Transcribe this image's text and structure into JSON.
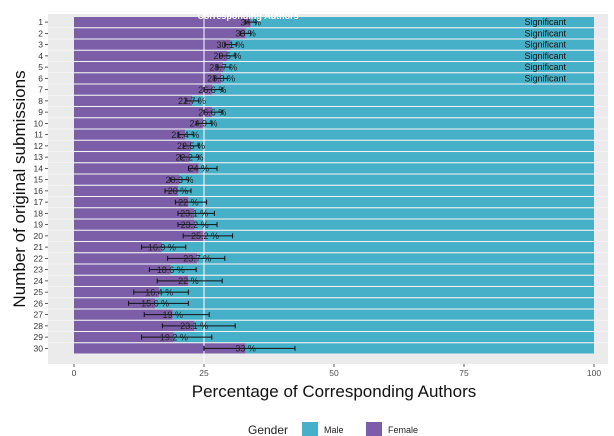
{
  "chart_data": {
    "type": "bar",
    "title": "Corresponding Authors",
    "xlabel": "Percentage of Corresponding Authors",
    "ylabel": "Number of original submissions",
    "xlim": [
      0,
      100
    ],
    "x_ticks": [
      0,
      25,
      50,
      75,
      100
    ],
    "stacked": true,
    "orientation": "horizontal",
    "categories": [
      "1",
      "2",
      "3",
      "4",
      "5",
      "6",
      "7",
      "8",
      "9",
      "10",
      "11",
      "12",
      "13",
      "14",
      "15",
      "16",
      "17",
      "18",
      "19",
      "20",
      "21",
      "22",
      "23",
      "24",
      "25",
      "26",
      "27",
      "28",
      "29",
      "30"
    ],
    "series": [
      {
        "name": "Female",
        "color": "#7b5ea7",
        "values": [
          34,
          33,
          30.1,
          29.5,
          28.7,
          28.3,
          26.6,
          22.7,
          26.6,
          24.9,
          21.4,
          22.5,
          22.2,
          24,
          20.3,
          20,
          22,
          23.1,
          23.2,
          25.2,
          16.9,
          23.7,
          18.6,
          22,
          16.4,
          15.6,
          19,
          23.1,
          19.2,
          33
        ]
      },
      {
        "name": "Male",
        "color": "#46b0c8",
        "values": [
          66,
          67,
          69.9,
          70.5,
          71.3,
          71.7,
          73.4,
          77.3,
          73.4,
          75.1,
          78.6,
          77.5,
          77.8,
          76,
          79.7,
          80,
          78,
          76.9,
          76.8,
          74.8,
          83.1,
          76.3,
          81.4,
          78,
          83.6,
          84.4,
          81,
          76.9,
          80.8,
          67
        ]
      }
    ],
    "labels": [
      "34 %",
      "33 %",
      "30.1 %",
      "29.5 %",
      "28.7 %",
      "28.3 %",
      "26.6 %",
      "22.7 %",
      "26.6 %",
      "24.9 %",
      "21.4 %",
      "22.5 %",
      "22.2 %",
      "24 %",
      "20.3 %",
      "20 %",
      "22 %",
      "23.1 %",
      "23.2 %",
      "25.2 %",
      "16.9 %",
      "23.7 %",
      "18.6 %",
      "22 %",
      "16.4 %",
      "15.6 %",
      "19 %",
      "23.1 %",
      "19.2 %",
      "33 %"
    ],
    "error_bars": [
      [
        33,
        35
      ],
      [
        32,
        34
      ],
      [
        29,
        31.2
      ],
      [
        28,
        31
      ],
      [
        27.5,
        30
      ],
      [
        27,
        29.5
      ],
      [
        25,
        28.5
      ],
      [
        21.5,
        24
      ],
      [
        25,
        28.5
      ],
      [
        23.5,
        26.5
      ],
      [
        20,
        23
      ],
      [
        21,
        24
      ],
      [
        20.5,
        24
      ],
      [
        22,
        27.5
      ],
      [
        18.5,
        22
      ],
      [
        17.5,
        22.5
      ],
      [
        19.5,
        25.5
      ],
      [
        20,
        27
      ],
      [
        20,
        27.5
      ],
      [
        21,
        30.5
      ],
      [
        13,
        21.5
      ],
      [
        18,
        29
      ],
      [
        14.5,
        23.5
      ],
      [
        16,
        28.5
      ],
      [
        11.5,
        22
      ],
      [
        10.5,
        22
      ],
      [
        13.5,
        26
      ],
      [
        17,
        31
      ],
      [
        13,
        26.5
      ],
      [
        25,
        42.5
      ]
    ],
    "reference_line": 25,
    "significant_rows": [
      "1",
      "2",
      "3",
      "4",
      "5",
      "6"
    ],
    "significant_label": "Significant",
    "grid": true,
    "legend_position": "bottom"
  },
  "legend": {
    "title": "Gender",
    "items": [
      {
        "label": "Male",
        "color": "#46b0c8"
      },
      {
        "label": "Female",
        "color": "#7b5ea7"
      }
    ]
  }
}
